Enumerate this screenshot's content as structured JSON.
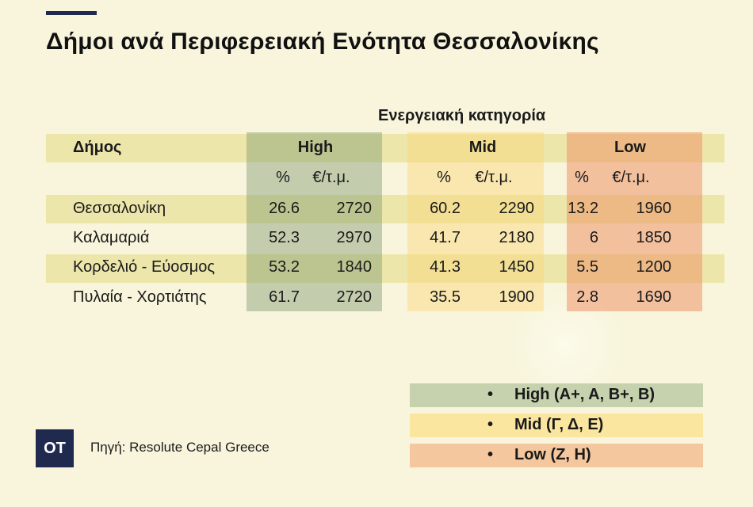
{
  "title": "Δήμοι ανά Περιφερειακή Ενότητα Θεσσαλονίκης",
  "chart_data": {
    "type": "table",
    "super_header": "Ενεργειακή κατηγορία",
    "row_header": "Δήμος",
    "groups": [
      {
        "name": "High",
        "subheaders": [
          "%",
          "€/τ.μ."
        ],
        "color": "#79966e"
      },
      {
        "name": "Mid",
        "subheaders": [
          "%",
          "€/τ.μ."
        ],
        "color": "#fcd678"
      },
      {
        "name": "Low",
        "subheaders": [
          "%",
          "€/τ.μ."
        ],
        "color": "#ee8c5f"
      }
    ],
    "rows": [
      {
        "name": "Θεσσαλονίκη",
        "values": [
          "26.6",
          "2720",
          "60.2",
          "2290",
          "13.2",
          "1960"
        ]
      },
      {
        "name": "Καλαμαριά",
        "values": [
          "52.3",
          "2970",
          "41.7",
          "2180",
          "6",
          "1850"
        ]
      },
      {
        "name": "Κορδελιό - Εύοσμος",
        "values": [
          "53.2",
          "1840",
          "41.3",
          "1450",
          "5.5",
          "1200"
        ]
      },
      {
        "name": "Πυλαία - Χορτιάτης",
        "values": [
          "61.7",
          "2720",
          "35.5",
          "1900",
          "2.8",
          "1690"
        ]
      }
    ]
  },
  "legend": [
    {
      "bullet": "•",
      "label": "High (A+, A, B+, B)",
      "color": "#c5d2ad"
    },
    {
      "bullet": "•",
      "label": "Mid (Γ, Δ, Ε)",
      "color": "#fbe6a0"
    },
    {
      "bullet": "•",
      "label": "Low (Ζ, Η)",
      "color": "#f4c79e"
    }
  ],
  "logo": "OT",
  "source": "Πηγή: Resolute Cepal Greece"
}
